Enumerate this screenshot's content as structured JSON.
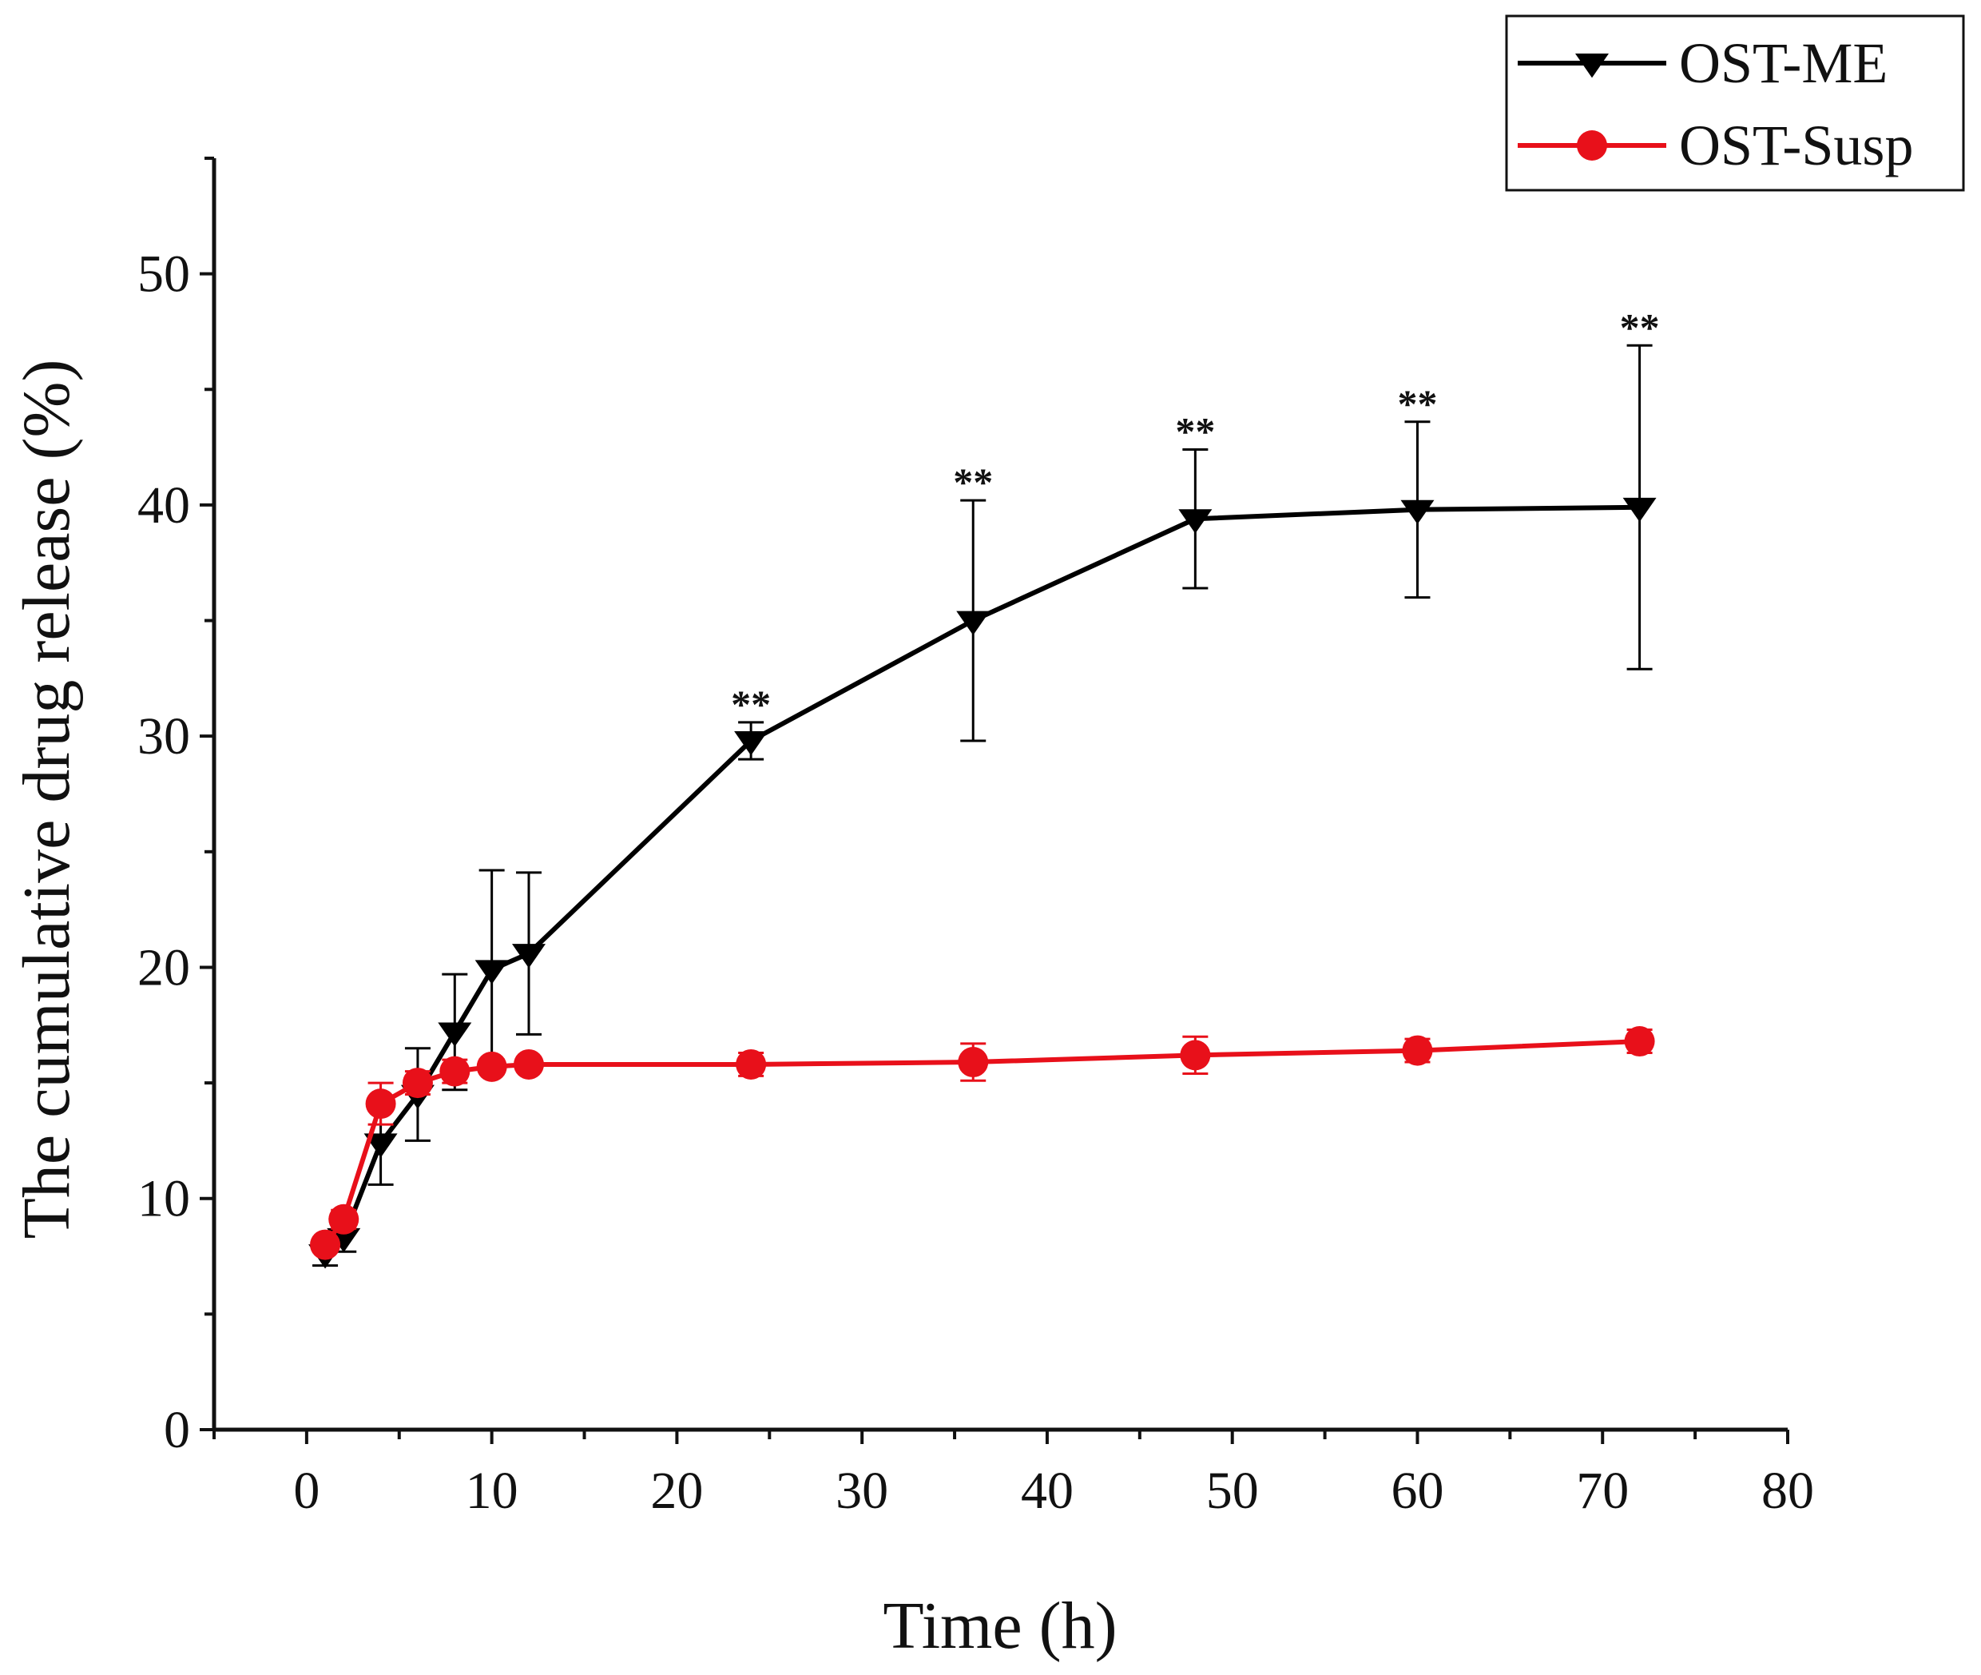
{
  "chart_data": {
    "type": "line",
    "title": "",
    "xlabel": "Time (h)",
    "ylabel": "The cumulative drug release (%)",
    "xlim": [
      -5,
      80
    ],
    "ylim": [
      0,
      55
    ],
    "xticks": [
      0,
      10,
      20,
      30,
      40,
      50,
      60,
      70,
      80
    ],
    "yticks": [
      0,
      10,
      20,
      30,
      40,
      50
    ],
    "grid": false,
    "legend_position": "top-right",
    "series": [
      {
        "name": "OST-ME",
        "color": "#000000",
        "marker": "triangle-down",
        "x": [
          1,
          2,
          4,
          6,
          8,
          10,
          12,
          24,
          36,
          48,
          60,
          72
        ],
        "y": [
          7.6,
          8.3,
          12.4,
          14.5,
          17.2,
          19.9,
          20.6,
          29.8,
          35.0,
          39.4,
          39.8,
          39.9
        ],
        "error": [
          0.5,
          0.6,
          1.8,
          2.0,
          2.5,
          4.3,
          3.5,
          0.8,
          5.2,
          3.0,
          3.8,
          7.0
        ],
        "annotations": [
          {
            "x": 24,
            "y": 30.6,
            "text": "**"
          },
          {
            "x": 36,
            "y": 40.2,
            "text": "**"
          },
          {
            "x": 48,
            "y": 42.4,
            "text": "**"
          },
          {
            "x": 60,
            "y": 43.6,
            "text": "**"
          },
          {
            "x": 72,
            "y": 46.9,
            "text": "**"
          }
        ]
      },
      {
        "name": "OST-Susp",
        "color": "#e8101a",
        "marker": "circle",
        "x": [
          1,
          2,
          4,
          6,
          8,
          10,
          12,
          24,
          36,
          48,
          60,
          72
        ],
        "y": [
          8.0,
          9.1,
          14.1,
          15.0,
          15.5,
          15.7,
          15.8,
          15.8,
          15.9,
          16.2,
          16.4,
          16.8
        ],
        "error": [
          0.3,
          0.4,
          0.9,
          0.5,
          0.5,
          0.3,
          0.3,
          0.5,
          0.8,
          0.8,
          0.5,
          0.5
        ]
      }
    ]
  }
}
